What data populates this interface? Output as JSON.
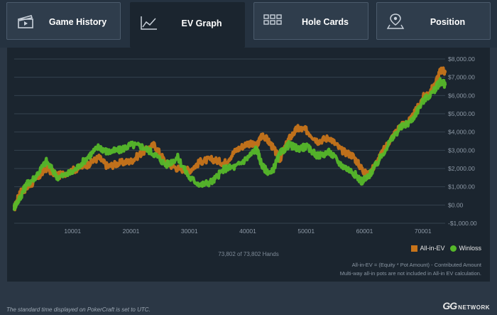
{
  "tabs": [
    {
      "label": "Game History",
      "icon": "clapperboard-icon",
      "active": false
    },
    {
      "label": "EV Graph",
      "icon": "line-chart-icon",
      "active": true
    },
    {
      "label": "Hole Cards",
      "icon": "grid-icon",
      "active": false
    },
    {
      "label": "Position",
      "icon": "location-pin-icon",
      "active": false
    }
  ],
  "hands_count": "73,802 of 73,802 Hands",
  "legend": {
    "allin_label": "All-in-EV",
    "winloss_label": "Winloss"
  },
  "notes": {
    "line1": "All-in-EV = (Equity * Pot Amount) - Contributed Amount",
    "line2": "Multi-way all-in pots are not included in All-in EV calculation."
  },
  "footer": {
    "timezone_note": "The standard time displayed on PokerCraft is set to UTC.",
    "brand_logo": "GG",
    "brand_network": "NETWORK"
  },
  "colors": {
    "allin": "#c8741a",
    "winloss": "#56b82a",
    "panel": "#1b252f",
    "grid": "#35424f"
  },
  "chart_data": {
    "type": "line",
    "x_label": "",
    "y_label": "",
    "xlim": [
      0,
      73802
    ],
    "ylim": [
      -1000,
      8000
    ],
    "x_ticks": [
      10001,
      20001,
      30001,
      40001,
      50001,
      60001,
      70001
    ],
    "x_tick_labels": [
      "10001",
      "20001",
      "30001",
      "40001",
      "50001",
      "60001",
      "70001"
    ],
    "y_ticks": [
      -1000,
      0,
      1000,
      2000,
      3000,
      4000,
      5000,
      6000,
      7000,
      8000
    ],
    "y_tick_labels": [
      "-$1,000.00",
      "$0.00",
      "$1,000.00",
      "$2,000.00",
      "$3,000.00",
      "$4,000.00",
      "$5,000.00",
      "$6,000.00",
      "$7,000.00",
      "$8,000.00"
    ],
    "grid": true,
    "legend_position": "bottom-right",
    "series": [
      {
        "name": "All-in-EV",
        "x": [
          0,
          1000,
          2000,
          3500,
          5500,
          7500,
          10000,
          12500,
          14500,
          16000,
          18000,
          20000,
          22000,
          24000,
          26000,
          28000,
          30000,
          32000,
          34000,
          36000,
          38000,
          40000,
          41500,
          42500,
          44000,
          45500,
          47000,
          48500,
          50000,
          52000,
          54000,
          56000,
          58000,
          59500,
          60500,
          62000,
          64000,
          66000,
          68000,
          70000,
          72000,
          73000,
          73802
        ],
        "y": [
          -200,
          700,
          900,
          1300,
          2000,
          1600,
          1900,
          2200,
          2600,
          2100,
          2300,
          2400,
          2900,
          3300,
          2300,
          2000,
          1900,
          2400,
          2500,
          2300,
          3000,
          3400,
          3200,
          3900,
          3300,
          2500,
          3600,
          4200,
          4100,
          3500,
          3700,
          3000,
          2700,
          2000,
          1600,
          2300,
          3400,
          4300,
          4700,
          5900,
          6500,
          7400,
          7300
        ]
      },
      {
        "name": "Winloss",
        "x": [
          0,
          1000,
          2000,
          3500,
          5500,
          7500,
          10000,
          12500,
          14500,
          16000,
          18000,
          20000,
          22000,
          24000,
          26000,
          28000,
          30000,
          32000,
          34000,
          36000,
          38000,
          40000,
          41500,
          42500,
          44000,
          45500,
          47000,
          48500,
          50000,
          52000,
          54000,
          56000,
          58000,
          59500,
          60500,
          62000,
          64000,
          66000,
          68000,
          70000,
          72000,
          73000,
          73802
        ],
        "y": [
          -100,
          400,
          1100,
          1500,
          2400,
          1500,
          1800,
          2600,
          3200,
          2900,
          3000,
          3300,
          3200,
          2800,
          2200,
          2600,
          1500,
          1100,
          1300,
          2000,
          2100,
          2600,
          3100,
          2100,
          1700,
          2800,
          3300,
          3100,
          3200,
          2700,
          2900,
          2200,
          1800,
          1300,
          1500,
          2200,
          3300,
          4200,
          4600,
          5700,
          6300,
          6800,
          6600
        ]
      }
    ]
  }
}
